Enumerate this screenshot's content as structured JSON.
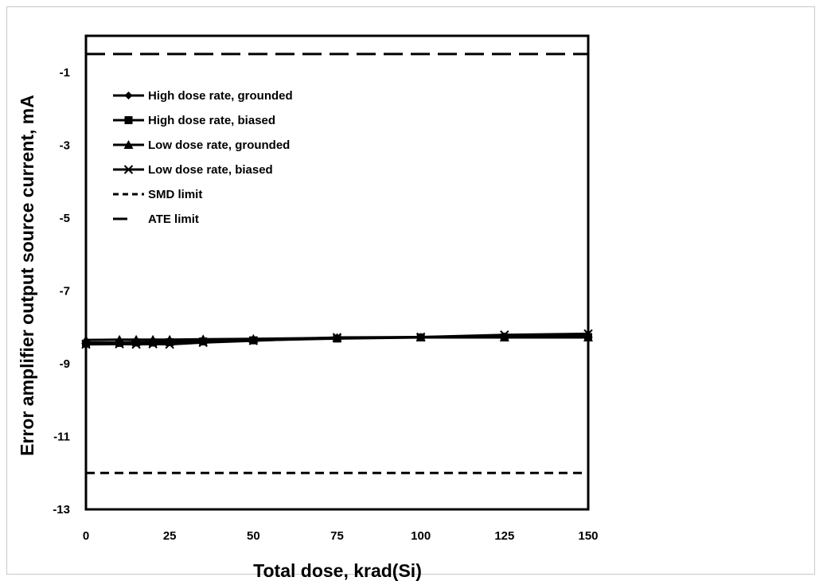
{
  "chart_data": {
    "type": "line",
    "title": "",
    "xlabel": "Total dose, krad(Si)",
    "ylabel": "Error amplifier output source current, mA",
    "xlim": [
      0,
      150
    ],
    "ylim": [
      -13,
      0
    ],
    "x_ticks": [
      0,
      25,
      50,
      75,
      100,
      125,
      150
    ],
    "y_ticks": [
      -1,
      -3,
      -5,
      -7,
      -9,
      -11,
      -13
    ],
    "grid": false,
    "legend_position": "top-left",
    "series": [
      {
        "name": "High dose rate, grounded",
        "marker": "diamond",
        "line": "solid",
        "x": [
          0,
          10,
          15,
          20,
          25,
          35,
          50,
          75,
          100,
          125,
          150
        ],
        "y": [
          -8.42,
          -8.42,
          -8.41,
          -8.4,
          -8.4,
          -8.38,
          -8.35,
          -8.3,
          -8.27,
          -8.25,
          -8.23
        ]
      },
      {
        "name": "High dose rate, biased",
        "marker": "square",
        "line": "solid",
        "x": [
          0,
          10,
          15,
          20,
          25,
          35,
          50,
          75,
          100,
          125,
          150
        ],
        "y": [
          -8.45,
          -8.43,
          -8.42,
          -8.42,
          -8.41,
          -8.39,
          -8.36,
          -8.31,
          -8.28,
          -8.28,
          -8.27
        ]
      },
      {
        "name": "Low dose rate, grounded",
        "marker": "triangle",
        "line": "solid",
        "x": [
          0,
          10,
          15,
          20,
          25,
          35,
          50,
          75,
          100,
          125,
          150
        ],
        "y": [
          -8.35,
          -8.34,
          -8.34,
          -8.34,
          -8.34,
          -8.33,
          -8.32,
          -8.29,
          -8.28,
          -8.28,
          -8.28
        ]
      },
      {
        "name": "Low dose rate, biased",
        "marker": "x",
        "line": "solid",
        "x": [
          0,
          10,
          15,
          20,
          25,
          35,
          50,
          75,
          100,
          125,
          150
        ],
        "y": [
          -8.47,
          -8.46,
          -8.47,
          -8.46,
          -8.47,
          -8.42,
          -8.37,
          -8.28,
          -8.27,
          -8.21,
          -8.18
        ]
      },
      {
        "name": "SMD limit",
        "marker": "none",
        "line": "dashed-short",
        "x": [
          0,
          150
        ],
        "y": [
          -12,
          -12
        ]
      },
      {
        "name": "ATE limit",
        "marker": "none",
        "line": "dashed-long",
        "x": [
          0,
          150
        ],
        "y": [
          -0.5,
          -0.5
        ]
      }
    ]
  }
}
